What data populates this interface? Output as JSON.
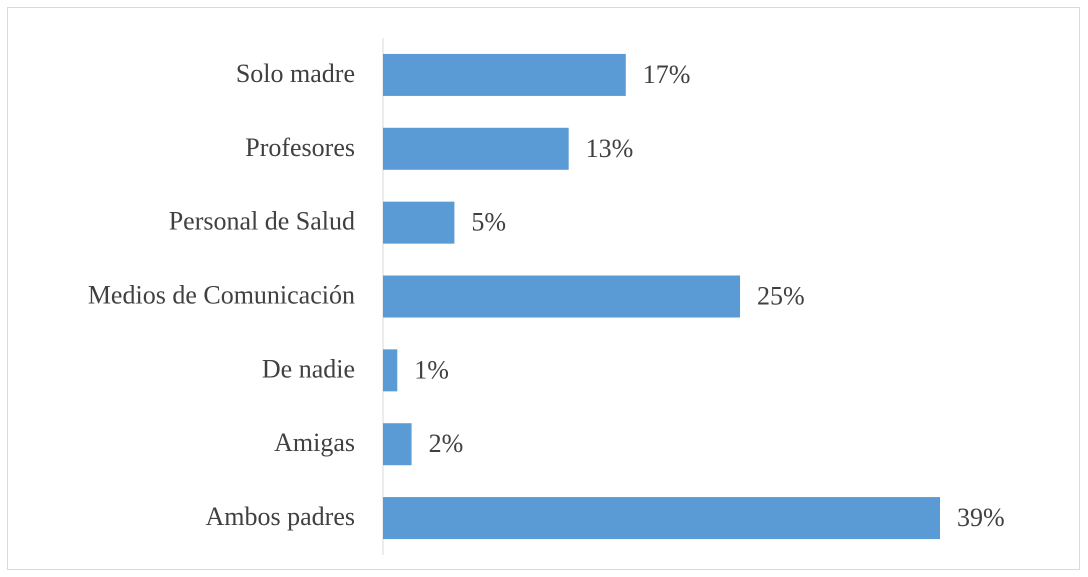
{
  "chart_data": {
    "type": "bar",
    "orientation": "horizontal",
    "categories": [
      "Solo madre",
      "Profesores",
      "Personal de Salud",
      "Medios de Comunicación",
      "De nadie",
      "Amigas",
      "Ambos padres"
    ],
    "values": [
      17,
      13,
      5,
      25,
      1,
      2,
      39
    ],
    "value_labels": [
      "17%",
      "13%",
      "5%",
      "25%",
      "1%",
      "2%",
      "39%"
    ],
    "color": "#5b9bd5"
  }
}
